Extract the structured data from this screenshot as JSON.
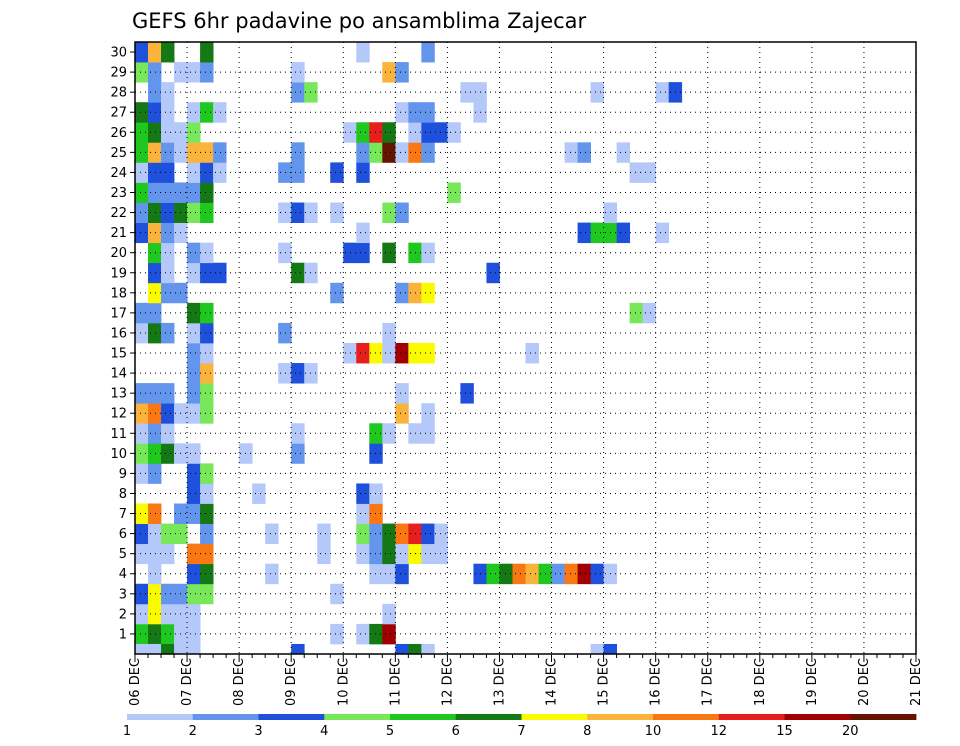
{
  "chart_data": {
    "type": "heatmap",
    "title": "GEFS 6hr padavine po ansamblima Zajecar",
    "xlabel": "",
    "ylabel": "",
    "x_time_origin": "06 DEC",
    "x_step_hours": 6,
    "x_tick_labels": [
      "06 DEC",
      "07 DEC",
      "08 DEC",
      "09 DEC",
      "10 DEC",
      "11 DEC",
      "12 DEC",
      "13 DEC",
      "14 DEC",
      "15 DEC",
      "16 DEC",
      "17 DEC",
      "18 DEC",
      "19 DEC",
      "20 DEC",
      "21 DEC"
    ],
    "y_tick_labels": [
      "1",
      "2",
      "3",
      "4",
      "5",
      "6",
      "7",
      "8",
      "9",
      "10",
      "11",
      "12",
      "13",
      "14",
      "15",
      "16",
      "17",
      "18",
      "19",
      "20",
      "21",
      "22",
      "23",
      "24",
      "25",
      "26",
      "27",
      "28",
      "29",
      "30"
    ],
    "colorbar": {
      "labels": [
        "1",
        "2",
        "3",
        "4",
        "5",
        "6",
        "7",
        "8",
        "10",
        "12",
        "15",
        "20"
      ],
      "colors": [
        "#b4c8fa",
        "#6495ed",
        "#1e50dc",
        "#78e85a",
        "#1ec81e",
        "#147814",
        "#fafa00",
        "#fab43c",
        "#fa7814",
        "#e61e1e",
        "#a00000",
        "#641400"
      ]
    },
    "grid": true,
    "cell_columns": [
      "step",
      "member",
      "class"
    ],
    "cells": [
      [
        1,
        1,
        4
      ],
      [
        2,
        1,
        5
      ],
      [
        3,
        1,
        4
      ],
      [
        4,
        1,
        0
      ],
      [
        5,
        1,
        0
      ],
      [
        16,
        1,
        0
      ],
      [
        18,
        1,
        0
      ],
      [
        19,
        1,
        5
      ],
      [
        20,
        1,
        10
      ],
      [
        1,
        2,
        0
      ],
      [
        2,
        2,
        6
      ],
      [
        3,
        2,
        0
      ],
      [
        4,
        2,
        0
      ],
      [
        5,
        2,
        0
      ],
      [
        20,
        2,
        0
      ],
      [
        1,
        3,
        2
      ],
      [
        2,
        3,
        6
      ],
      [
        3,
        3,
        1
      ],
      [
        4,
        3,
        1
      ],
      [
        5,
        3,
        3
      ],
      [
        6,
        3,
        3
      ],
      [
        16,
        3,
        0
      ],
      [
        2,
        4,
        0
      ],
      [
        5,
        4,
        2
      ],
      [
        6,
        4,
        5
      ],
      [
        11,
        4,
        0
      ],
      [
        19,
        4,
        0
      ],
      [
        20,
        4,
        0
      ],
      [
        21,
        4,
        2
      ],
      [
        27,
        4,
        2
      ],
      [
        28,
        4,
        4
      ],
      [
        29,
        4,
        5
      ],
      [
        30,
        4,
        8
      ],
      [
        31,
        4,
        7
      ],
      [
        32,
        4,
        4
      ],
      [
        33,
        4,
        1
      ],
      [
        34,
        4,
        8
      ],
      [
        35,
        4,
        10
      ],
      [
        36,
        4,
        2
      ],
      [
        37,
        4,
        0
      ],
      [
        1,
        5,
        0
      ],
      [
        2,
        5,
        0
      ],
      [
        3,
        5,
        0
      ],
      [
        5,
        5,
        8
      ],
      [
        6,
        5,
        8
      ],
      [
        15,
        5,
        0
      ],
      [
        18,
        5,
        0
      ],
      [
        19,
        5,
        1
      ],
      [
        20,
        5,
        5
      ],
      [
        21,
        5,
        0
      ],
      [
        22,
        5,
        6
      ],
      [
        23,
        5,
        0
      ],
      [
        24,
        5,
        0
      ],
      [
        1,
        6,
        2
      ],
      [
        2,
        6,
        0
      ],
      [
        3,
        6,
        3
      ],
      [
        4,
        6,
        3
      ],
      [
        6,
        6,
        1
      ],
      [
        11,
        6,
        0
      ],
      [
        15,
        6,
        0
      ],
      [
        18,
        6,
        3
      ],
      [
        19,
        6,
        1
      ],
      [
        20,
        6,
        5
      ],
      [
        21,
        6,
        8
      ],
      [
        22,
        6,
        9
      ],
      [
        23,
        6,
        2
      ],
      [
        24,
        6,
        0
      ],
      [
        1,
        7,
        6
      ],
      [
        2,
        7,
        8
      ],
      [
        4,
        7,
        1
      ],
      [
        5,
        7,
        1
      ],
      [
        6,
        7,
        5
      ],
      [
        18,
        7,
        0
      ],
      [
        19,
        7,
        8
      ],
      [
        5,
        8,
        2
      ],
      [
        6,
        8,
        0
      ],
      [
        10,
        8,
        0
      ],
      [
        18,
        8,
        2
      ],
      [
        19,
        8,
        0
      ],
      [
        1,
        9,
        0
      ],
      [
        2,
        9,
        1
      ],
      [
        5,
        9,
        2
      ],
      [
        6,
        9,
        3
      ],
      [
        1,
        10,
        3
      ],
      [
        2,
        10,
        4
      ],
      [
        3,
        10,
        5
      ],
      [
        4,
        10,
        0
      ],
      [
        5,
        10,
        0
      ],
      [
        9,
        10,
        0
      ],
      [
        13,
        10,
        1
      ],
      [
        19,
        10,
        2
      ],
      [
        1,
        11,
        0
      ],
      [
        2,
        11,
        1
      ],
      [
        3,
        11,
        0
      ],
      [
        13,
        11,
        0
      ],
      [
        19,
        11,
        4
      ],
      [
        20,
        11,
        0
      ],
      [
        22,
        11,
        0
      ],
      [
        23,
        11,
        0
      ],
      [
        1,
        12,
        7
      ],
      [
        2,
        12,
        8
      ],
      [
        3,
        12,
        2
      ],
      [
        4,
        12,
        0
      ],
      [
        5,
        12,
        0
      ],
      [
        6,
        12,
        3
      ],
      [
        21,
        12,
        7
      ],
      [
        23,
        12,
        0
      ],
      [
        1,
        13,
        1
      ],
      [
        2,
        13,
        1
      ],
      [
        3,
        13,
        1
      ],
      [
        5,
        13,
        1
      ],
      [
        6,
        13,
        3
      ],
      [
        21,
        13,
        0
      ],
      [
        26,
        13,
        2
      ],
      [
        5,
        14,
        1
      ],
      [
        6,
        14,
        7
      ],
      [
        12,
        14,
        0
      ],
      [
        13,
        14,
        2
      ],
      [
        14,
        14,
        0
      ],
      [
        5,
        15,
        1
      ],
      [
        6,
        15,
        0
      ],
      [
        17,
        15,
        0
      ],
      [
        18,
        15,
        9
      ],
      [
        19,
        15,
        6
      ],
      [
        20,
        15,
        0
      ],
      [
        21,
        15,
        10
      ],
      [
        22,
        15,
        6
      ],
      [
        23,
        15,
        6
      ],
      [
        31,
        15,
        0
      ],
      [
        1,
        16,
        0
      ],
      [
        2,
        16,
        5
      ],
      [
        3,
        16,
        1
      ],
      [
        5,
        16,
        0
      ],
      [
        6,
        16,
        2
      ],
      [
        12,
        16,
        1
      ],
      [
        20,
        16,
        0
      ],
      [
        1,
        17,
        1
      ],
      [
        2,
        17,
        1
      ],
      [
        5,
        17,
        5
      ],
      [
        6,
        17,
        4
      ],
      [
        39,
        17,
        3
      ],
      [
        40,
        17,
        0
      ],
      [
        2,
        18,
        6
      ],
      [
        3,
        18,
        1
      ],
      [
        4,
        18,
        1
      ],
      [
        16,
        18,
        1
      ],
      [
        21,
        18,
        1
      ],
      [
        22,
        18,
        7
      ],
      [
        23,
        18,
        6
      ],
      [
        2,
        19,
        2
      ],
      [
        3,
        19,
        0
      ],
      [
        5,
        19,
        0
      ],
      [
        6,
        19,
        2
      ],
      [
        7,
        19,
        2
      ],
      [
        13,
        19,
        5
      ],
      [
        14,
        19,
        0
      ],
      [
        28,
        19,
        2
      ],
      [
        2,
        20,
        4
      ],
      [
        3,
        20,
        0
      ],
      [
        5,
        20,
        1
      ],
      [
        6,
        20,
        0
      ],
      [
        12,
        20,
        0
      ],
      [
        17,
        20,
        2
      ],
      [
        18,
        20,
        2
      ],
      [
        20,
        20,
        5
      ],
      [
        22,
        20,
        4
      ],
      [
        23,
        20,
        0
      ],
      [
        1,
        21,
        2
      ],
      [
        2,
        21,
        7
      ],
      [
        3,
        21,
        1
      ],
      [
        4,
        21,
        0
      ],
      [
        18,
        21,
        0
      ],
      [
        35,
        21,
        2
      ],
      [
        36,
        21,
        4
      ],
      [
        37,
        21,
        4
      ],
      [
        38,
        21,
        2
      ],
      [
        41,
        21,
        0
      ],
      [
        1,
        22,
        1
      ],
      [
        2,
        22,
        5
      ],
      [
        3,
        22,
        2
      ],
      [
        4,
        22,
        5
      ],
      [
        5,
        22,
        3
      ],
      [
        6,
        22,
        4
      ],
      [
        12,
        22,
        0
      ],
      [
        13,
        22,
        2
      ],
      [
        14,
        22,
        0
      ],
      [
        16,
        22,
        0
      ],
      [
        20,
        22,
        3
      ],
      [
        21,
        22,
        1
      ],
      [
        37,
        22,
        0
      ],
      [
        1,
        23,
        4
      ],
      [
        2,
        23,
        1
      ],
      [
        3,
        23,
        1
      ],
      [
        4,
        23,
        1
      ],
      [
        5,
        23,
        1
      ],
      [
        6,
        23,
        5
      ],
      [
        25,
        23,
        3
      ],
      [
        1,
        24,
        0
      ],
      [
        2,
        24,
        2
      ],
      [
        3,
        24,
        2
      ],
      [
        5,
        24,
        0
      ],
      [
        6,
        24,
        2
      ],
      [
        7,
        24,
        0
      ],
      [
        12,
        24,
        1
      ],
      [
        13,
        24,
        1
      ],
      [
        16,
        24,
        2
      ],
      [
        18,
        24,
        2
      ],
      [
        39,
        24,
        0
      ],
      [
        40,
        24,
        0
      ],
      [
        1,
        25,
        4
      ],
      [
        2,
        25,
        7
      ],
      [
        3,
        25,
        1
      ],
      [
        4,
        25,
        0
      ],
      [
        5,
        25,
        7
      ],
      [
        6,
        25,
        7
      ],
      [
        7,
        25,
        1
      ],
      [
        13,
        25,
        1
      ],
      [
        18,
        25,
        1
      ],
      [
        19,
        25,
        3
      ],
      [
        20,
        25,
        11
      ],
      [
        21,
        25,
        0
      ],
      [
        22,
        25,
        8
      ],
      [
        23,
        25,
        1
      ],
      [
        34,
        25,
        0
      ],
      [
        35,
        25,
        1
      ],
      [
        38,
        25,
        0
      ],
      [
        1,
        26,
        4
      ],
      [
        2,
        26,
        5
      ],
      [
        3,
        26,
        0
      ],
      [
        4,
        26,
        0
      ],
      [
        5,
        26,
        3
      ],
      [
        17,
        26,
        0
      ],
      [
        18,
        26,
        4
      ],
      [
        19,
        26,
        9
      ],
      [
        20,
        26,
        5
      ],
      [
        22,
        26,
        0
      ],
      [
        23,
        26,
        2
      ],
      [
        24,
        26,
        2
      ],
      [
        25,
        26,
        0
      ],
      [
        1,
        27,
        5
      ],
      [
        2,
        27,
        2
      ],
      [
        3,
        27,
        0
      ],
      [
        5,
        27,
        0
      ],
      [
        6,
        27,
        4
      ],
      [
        7,
        27,
        0
      ],
      [
        21,
        27,
        0
      ],
      [
        22,
        27,
        1
      ],
      [
        23,
        27,
        1
      ],
      [
        27,
        27,
        0
      ],
      [
        2,
        28,
        1
      ],
      [
        3,
        28,
        0
      ],
      [
        13,
        28,
        1
      ],
      [
        14,
        28,
        3
      ],
      [
        26,
        28,
        0
      ],
      [
        27,
        28,
        0
      ],
      [
        36,
        28,
        0
      ],
      [
        41,
        28,
        0
      ],
      [
        42,
        28,
        2
      ],
      [
        1,
        29,
        3
      ],
      [
        2,
        29,
        1
      ],
      [
        4,
        29,
        0
      ],
      [
        5,
        29,
        0
      ],
      [
        6,
        29,
        1
      ],
      [
        13,
        29,
        0
      ],
      [
        20,
        29,
        7
      ],
      [
        21,
        29,
        1
      ],
      [
        1,
        30,
        2
      ],
      [
        2,
        30,
        7
      ],
      [
        3,
        30,
        5
      ],
      [
        6,
        30,
        5
      ],
      [
        18,
        30,
        0
      ],
      [
        23,
        30,
        1
      ]
    ],
    "zero_row_cells": [
      [
        1,
        0
      ],
      [
        2,
        0
      ],
      [
        3,
        5
      ],
      [
        4,
        0
      ],
      [
        5,
        0
      ],
      [
        13,
        2
      ],
      [
        21,
        2
      ],
      [
        22,
        5
      ],
      [
        23,
        0
      ],
      [
        36,
        0
      ],
      [
        37,
        2
      ]
    ]
  }
}
